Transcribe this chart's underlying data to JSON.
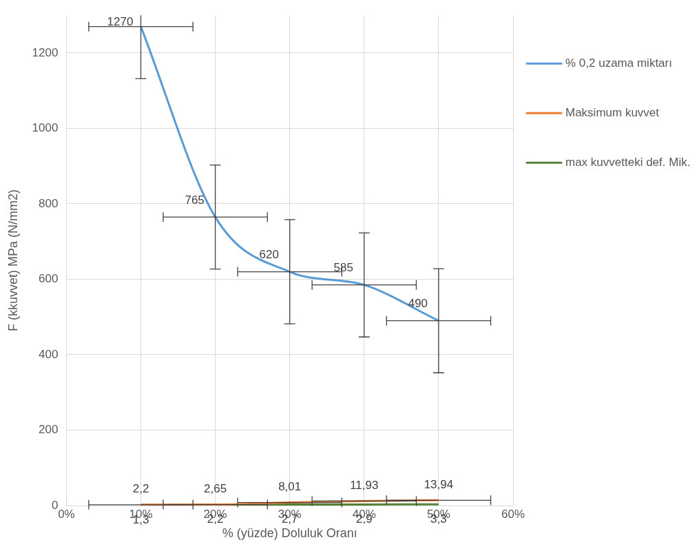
{
  "chart_data": {
    "type": "line",
    "xlabel": "% (yüzde) Doluluk Oranı",
    "ylabel": "F (kkuvvet) MPa (N/mm2)",
    "x": [
      10,
      20,
      30,
      40,
      50
    ],
    "xlim": [
      0,
      60
    ],
    "xticks": [
      {
        "value": 0,
        "label": "0%"
      },
      {
        "value": 10,
        "label": "10%"
      },
      {
        "value": 20,
        "label": "20%"
      },
      {
        "value": 30,
        "label": "30%"
      },
      {
        "value": 40,
        "label": "40%"
      },
      {
        "value": 50,
        "label": "50%"
      },
      {
        "value": 60,
        "label": "60%"
      }
    ],
    "ylim": [
      0,
      1300
    ],
    "yticks": [
      0,
      200,
      400,
      600,
      800,
      1000,
      1200
    ],
    "grid": true,
    "legend": "right",
    "marker": "none",
    "line_style": "solid",
    "series": [
      {
        "name": "% 0,2 uzama miktarı",
        "color": "#5b9bd5",
        "values": [
          1270,
          765,
          620,
          585,
          490
        ],
        "value_labels": [
          "1270",
          "765",
          "620",
          "585",
          "490"
        ],
        "errors": [
          [
            1132,
            1300
          ],
          138,
          138,
          138,
          138
        ],
        "xerrors": [
          7,
          7,
          7,
          7,
          7
        ]
      },
      {
        "name": "Maksimum kuvvet",
        "color": "#ed7d31",
        "values": [
          2.2,
          2.65,
          8.01,
          11.93,
          13.94
        ],
        "value_labels": [
          "2,2",
          "2,65",
          "8,01",
          "11,93",
          "13,94"
        ],
        "xerrors": [
          7,
          7,
          7,
          7,
          7
        ]
      },
      {
        "name": "max kuvvetteki def. Mik.",
        "color": "#548235",
        "values": [
          1.3,
          2.2,
          2.7,
          2.9,
          3.3
        ],
        "value_labels": [
          "1,3",
          "2,2",
          "2,7",
          "2,9",
          "3,3"
        ]
      }
    ]
  }
}
